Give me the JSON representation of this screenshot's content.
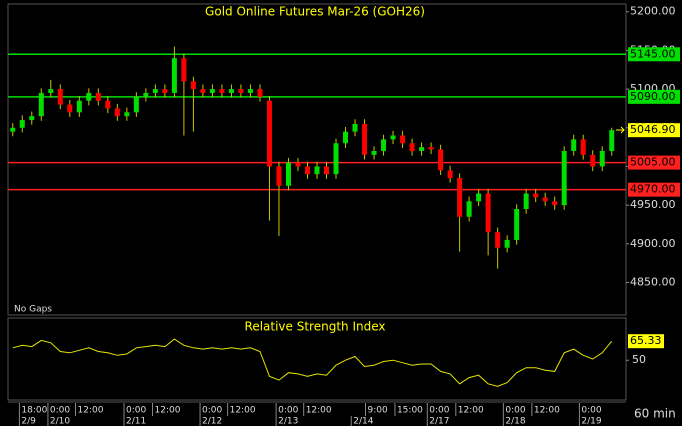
{
  "chart_data": [
    {
      "type": "candlestick",
      "title": "Gold Online Futures Mar-26 (GOH26)",
      "note": "No Gaps",
      "xlim": [
        -0.5,
        64.5
      ],
      "ylim": [
        4808,
        5210
      ],
      "yticks": [
        {
          "value": 5200,
          "label": "5200.00"
        },
        {
          "value": 5150,
          "label": "5150.00"
        },
        {
          "value": 5100,
          "label": "5100.00"
        },
        {
          "value": 5050,
          "label": "5050.00"
        },
        {
          "value": 5000,
          "label": "5000.00"
        },
        {
          "value": 4950,
          "label": "4950.00"
        },
        {
          "value": 4900,
          "label": "4900.00"
        },
        {
          "value": 4850,
          "label": "4850.00"
        }
      ],
      "up_color": "#00e000",
      "down_color": "#ff0000",
      "wick_color": "#c8c800",
      "open": [
        5045,
        5050,
        5060,
        5065,
        5095,
        5100,
        5080,
        5070,
        5085,
        5095,
        5085,
        5075,
        5065,
        5070,
        5090,
        5095,
        5100,
        5095,
        5140,
        5110,
        5100,
        5095,
        5100,
        5095,
        5100,
        5095,
        5100,
        5085,
        5000,
        4975,
        5005,
        5000,
        4990,
        5000,
        4990,
        5030,
        5045,
        5055,
        5015,
        5020,
        5035,
        5040,
        5030,
        5020,
        5025,
        5022,
        4995,
        4985,
        4935,
        4955,
        4965,
        4915,
        4895,
        4905,
        4945,
        4965,
        4960,
        4955,
        4950,
        5020,
        5035,
        5015,
        5000,
        5020
      ],
      "high": [
        5056,
        5066,
        5071,
        5101,
        5112,
        5106,
        5086,
        5091,
        5101,
        5101,
        5091,
        5081,
        5076,
        5096,
        5101,
        5106,
        5106,
        5155,
        5146,
        5116,
        5106,
        5106,
        5106,
        5106,
        5106,
        5106,
        5106,
        5091,
        5006,
        5011,
        5011,
        5006,
        5006,
        5006,
        5036,
        5051,
        5061,
        5061,
        5026,
        5041,
        5046,
        5046,
        5036,
        5031,
        5031,
        5028,
        5001,
        4991,
        4961,
        4971,
        4971,
        4921,
        4911,
        4951,
        4971,
        4971,
        4966,
        4961,
        5026,
        5041,
        5041,
        5021,
        5026,
        5050
      ],
      "low": [
        5039,
        5044,
        5054,
        5059,
        5089,
        5074,
        5064,
        5064,
        5079,
        5079,
        5069,
        5059,
        5059,
        5064,
        5084,
        5089,
        5089,
        5089,
        5040,
        5045,
        5089,
        5089,
        5089,
        5089,
        5089,
        5089,
        5084,
        4930,
        4910,
        4969,
        4994,
        4984,
        4984,
        4984,
        4984,
        5024,
        5039,
        5009,
        5009,
        5014,
        5029,
        5024,
        5014,
        5014,
        5016,
        4989,
        4979,
        4890,
        4929,
        4949,
        4885,
        4868,
        4889,
        4899,
        4939,
        4954,
        4949,
        4944,
        4944,
        5014,
        5009,
        4994,
        4994,
        5014
      ],
      "close": [
        5050,
        5060,
        5065,
        5095,
        5100,
        5080,
        5070,
        5085,
        5095,
        5085,
        5075,
        5065,
        5070,
        5090,
        5095,
        5100,
        5095,
        5140,
        5110,
        5100,
        5095,
        5100,
        5095,
        5100,
        5095,
        5100,
        5090,
        5000,
        4975,
        5005,
        5000,
        4990,
        5000,
        4990,
        5030,
        5045,
        5055,
        5015,
        5020,
        5035,
        5040,
        5030,
        5020,
        5025,
        5022,
        4995,
        4985,
        4935,
        4955,
        4965,
        4915,
        4895,
        4905,
        4945,
        4965,
        4960,
        4955,
        4950,
        5020,
        5035,
        5015,
        5000,
        5020,
        5046.9
      ],
      "levels": [
        {
          "value": 5145,
          "label": "5145.00",
          "color": "#00e000"
        },
        {
          "value": 5090,
          "label": "5090.00",
          "color": "#00e000"
        },
        {
          "value": 5005,
          "label": "5005.00",
          "color": "#ff2020"
        },
        {
          "value": 4970,
          "label": "4970.00",
          "color": "#ff2020"
        }
      ],
      "last_price": {
        "value": 5046.9,
        "label": "5046.90",
        "color": "#ffff00"
      }
    },
    {
      "type": "line",
      "title": "Relative Strength Index",
      "xlim": [
        -0.5,
        64.5
      ],
      "ylim": [
        18,
        84
      ],
      "yticks": [
        50
      ],
      "color": "#e6e600",
      "label_color": "#ffff00",
      "values": [
        60,
        62,
        61,
        66,
        64,
        57,
        56,
        58,
        60,
        57,
        56,
        54,
        55,
        60,
        61,
        62,
        61,
        67,
        62,
        60,
        59,
        60,
        59,
        60,
        59,
        60,
        57,
        37,
        34,
        40,
        39,
        37,
        39,
        38,
        46,
        50,
        53,
        45,
        46,
        49,
        50,
        48,
        46,
        47,
        47,
        41,
        39,
        31,
        36,
        38,
        31,
        29,
        32,
        40,
        44,
        44,
        42,
        41,
        56,
        59,
        54,
        51,
        56,
        65.33
      ],
      "xticks": [
        {
          "value": 0.7,
          "label": "18:00"
        },
        {
          "value": 3.7,
          "label": "0:00"
        },
        {
          "value": 6.6,
          "label": "12:00"
        },
        {
          "value": 11.7,
          "label": "0:00"
        },
        {
          "value": 14.7,
          "label": "12:00"
        },
        {
          "value": 19.7,
          "label": "0:00"
        },
        {
          "value": 22.6,
          "label": "12:00"
        },
        {
          "value": 27.7,
          "label": "0:00"
        },
        {
          "value": 30.6,
          "label": "12:00"
        },
        {
          "value": 37.1,
          "label": "9:00"
        },
        {
          "value": 40.2,
          "label": "15:00"
        },
        {
          "value": 43.6,
          "label": "0:00"
        },
        {
          "value": 46.6,
          "label": "12:00"
        },
        {
          "value": 51.6,
          "label": "0:00"
        },
        {
          "value": 54.6,
          "label": "12:00"
        },
        {
          "value": 59.6,
          "label": "0:00"
        }
      ],
      "date_ticks": [
        {
          "value": 0.7,
          "label": "2/9"
        },
        {
          "value": 3.7,
          "label": "2/10"
        },
        {
          "value": 11.7,
          "label": "2/11"
        },
        {
          "value": 19.7,
          "label": "2/12"
        },
        {
          "value": 27.7,
          "label": "2/13"
        },
        {
          "value": 35.6,
          "label": "2/14"
        },
        {
          "value": 43.6,
          "label": "2/17"
        },
        {
          "value": 51.6,
          "label": "2/18"
        },
        {
          "value": 59.6,
          "label": "2/19"
        }
      ],
      "x_unit": "60 min"
    }
  ]
}
